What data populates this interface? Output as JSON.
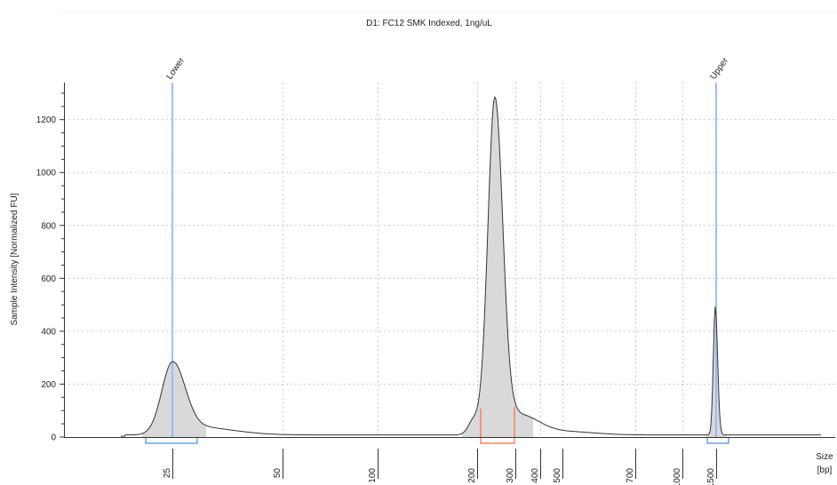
{
  "chart_data": {
    "type": "area",
    "title": "D1: FC12 SMK Indexed, 1ng/uL",
    "ylabel": "Sample Intensity [Normalized FU]",
    "xlabel_line1": "Size",
    "xlabel_line2": "[bp]",
    "ylim": [
      0,
      1350
    ],
    "y_ticks": [
      0,
      200,
      400,
      600,
      800,
      1000,
      1200
    ],
    "x_ticks": [
      "25",
      "50",
      "100",
      "200",
      "300",
      "400",
      "500",
      "700",
      "1000",
      "1500"
    ],
    "x_scale": "nonlinear (electrophoresis size ladder)",
    "grid": true,
    "markers": [
      {
        "label": "Lower",
        "size_bp": 25
      },
      {
        "label": "Upper",
        "size_bp": 1500
      }
    ],
    "peaks": [
      {
        "name": "lower-marker-peak",
        "size_bp": 25,
        "height": 265
      },
      {
        "name": "sample-peak",
        "size_bp": 300,
        "height": 1275
      },
      {
        "name": "upper-marker-peak",
        "size_bp": 1500,
        "height": 485
      }
    ],
    "colors": {
      "curve": "#333333",
      "fill": "#d9d9d9",
      "marker_line": "#7fb3ff",
      "marker_region": "#4a90e2",
      "sample_region": "#ff6a3d",
      "grid": "#c8c8c8"
    }
  }
}
